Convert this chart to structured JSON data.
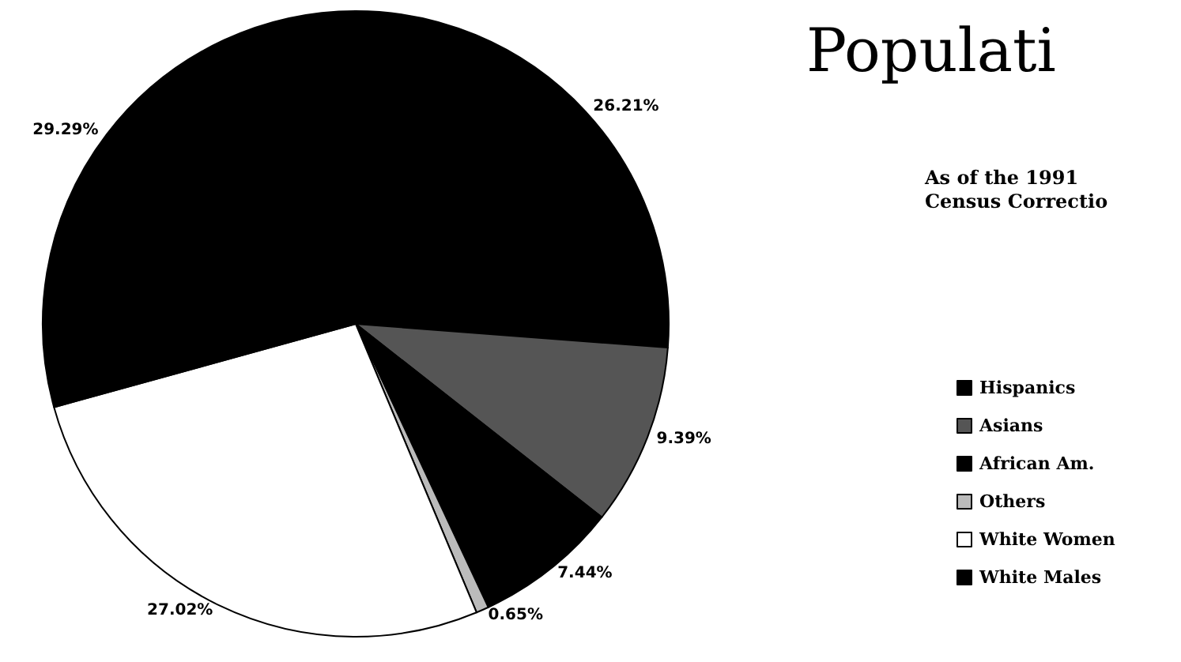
{
  "chart_data": {
    "type": "pie",
    "title": "Populati",
    "subtitle": "As of the 1991\nCensus Correctio",
    "categories": [
      "Hispanics",
      "Asians",
      "African Am.",
      "Others",
      "White Women",
      "White Males"
    ],
    "values": [
      26.21,
      9.39,
      7.44,
      0.65,
      27.02,
      29.29
    ],
    "value_labels": [
      "26.21%",
      "9.39%",
      "7.44%",
      "0.65%",
      "27.02%",
      "29.29%"
    ],
    "colors": [
      "#000000",
      "#555555",
      "#000000",
      "#bbbbbb",
      "#ffffff",
      "#000000"
    ],
    "legend": "right"
  }
}
